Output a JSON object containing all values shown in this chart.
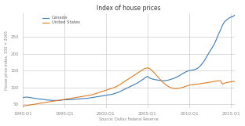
{
  "title": "Index of house prices",
  "xlabel": "Source: Dallas Federal Reserve",
  "ylabel": "House price index, 100 = 2005",
  "yticks": [
    50,
    100,
    150,
    200,
    250
  ],
  "xtick_labels": [
    "1990:Q1",
    "1995:Q1",
    "2000:Q1",
    "2005:Q1",
    "2010:Q1",
    "2015:Q1"
  ],
  "xtick_positions": [
    0,
    20,
    40,
    60,
    80,
    100
  ],
  "legend": [
    "Canada",
    "United States"
  ],
  "canada_color": "#3A7AB8",
  "us_color": "#E07B20",
  "background_color": "#FFFFFF",
  "plot_bg_color": "#FFFFFF",
  "canada_data": [
    70,
    71,
    72,
    71,
    70,
    69,
    68,
    67,
    66,
    66,
    65,
    64,
    63,
    63,
    62,
    62,
    62,
    62,
    62,
    63,
    64,
    64,
    64,
    64,
    65,
    65,
    66,
    66,
    67,
    67,
    68,
    68,
    69,
    70,
    71,
    72,
    73,
    74,
    75,
    76,
    77,
    78,
    79,
    80,
    82,
    84,
    86,
    89,
    92,
    95,
    98,
    101,
    104,
    107,
    110,
    113,
    117,
    121,
    125,
    130,
    133,
    128,
    126,
    124,
    123,
    122,
    121,
    120,
    120,
    121,
    122,
    124,
    126,
    128,
    131,
    134,
    138,
    142,
    145,
    148,
    150,
    151,
    152,
    154,
    157,
    162,
    169,
    177,
    187,
    198,
    208,
    218,
    228,
    242,
    257,
    270,
    285,
    295,
    300,
    305,
    308,
    310,
    315
  ],
  "us_data": [
    45,
    46,
    47,
    48,
    49,
    50,
    51,
    52,
    53,
    54,
    55,
    56,
    57,
    58,
    59,
    60,
    61,
    62,
    63,
    64,
    65,
    66,
    67,
    68,
    69,
    70,
    71,
    72,
    73,
    74,
    75,
    76,
    77,
    78,
    80,
    82,
    84,
    86,
    88,
    90,
    92,
    94,
    96,
    98,
    100,
    103,
    106,
    110,
    114,
    118,
    122,
    126,
    130,
    134,
    138,
    142,
    146,
    150,
    154,
    157,
    158,
    156,
    151,
    145,
    138,
    131,
    124,
    118,
    112,
    107,
    103,
    100,
    98,
    97,
    97,
    98,
    99,
    101,
    103,
    105,
    107,
    108,
    109,
    110,
    110,
    111,
    112,
    113,
    114,
    115,
    116,
    117,
    118,
    119,
    120,
    120,
    110,
    113,
    115,
    116,
    117,
    118,
    118
  ],
  "xlim_start": 0,
  "xlim_end": 102,
  "ylim": [
    40,
    320
  ]
}
